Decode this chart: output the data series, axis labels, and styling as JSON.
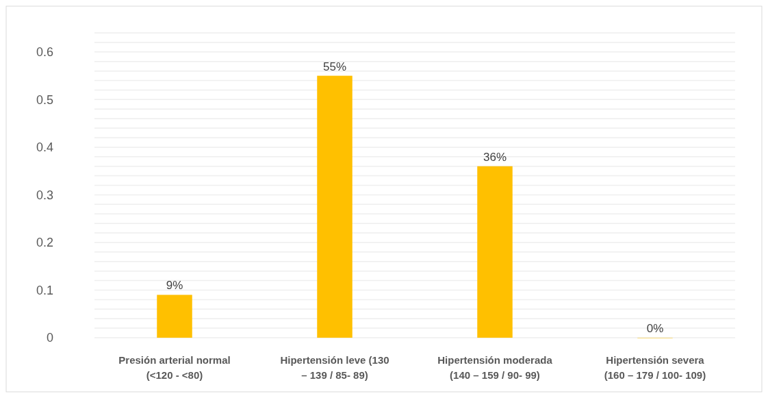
{
  "chart_data": {
    "type": "bar",
    "categories": [
      "Presión arterial normal\n(<120  - <80)",
      "Hipertensión leve (130\n– 139 / 85- 89)",
      "Hipertensión moderada\n(140 – 159 / 90- 99)",
      "Hipertensión severa\n(160 – 179 / 100- 109)"
    ],
    "values": [
      0.09,
      0.55,
      0.36,
      0
    ],
    "value_labels": [
      "9%",
      "55%",
      "36%",
      "0%"
    ],
    "color": "#ffc000",
    "ylim": [
      0,
      0.64
    ],
    "yticks": [
      0,
      {
        "value": 0.02,
        "label": null
      },
      {
        "value": 0.04,
        "label": null
      },
      {
        "value": 0.06,
        "label": null
      },
      {
        "value": 0.08,
        "label": null
      },
      0.1,
      {
        "value": 0.12,
        "label": null
      },
      {
        "value": 0.14,
        "label": null
      },
      {
        "value": 0.16,
        "label": null
      },
      {
        "value": 0.18,
        "label": null
      },
      0.2,
      {
        "value": 0.22,
        "label": null
      },
      {
        "value": 0.24,
        "label": null
      },
      {
        "value": 0.26,
        "label": null
      },
      {
        "value": 0.28,
        "label": null
      },
      0.3,
      {
        "value": 0.32,
        "label": null
      },
      {
        "value": 0.34,
        "label": null
      },
      {
        "value": 0.36,
        "label": null
      },
      {
        "value": 0.38,
        "label": null
      },
      0.4,
      {
        "value": 0.42,
        "label": null
      },
      {
        "value": 0.44,
        "label": null
      },
      {
        "value": 0.46,
        "label": null
      },
      {
        "value": 0.48,
        "label": null
      },
      0.5,
      {
        "value": 0.52,
        "label": null
      },
      {
        "value": 0.54,
        "label": null
      },
      {
        "value": 0.56,
        "label": null
      },
      {
        "value": 0.58,
        "label": null
      },
      0.6,
      {
        "value": 0.62,
        "label": null
      },
      {
        "value": 0.64,
        "label": null
      }
    ],
    "grid": true
  }
}
